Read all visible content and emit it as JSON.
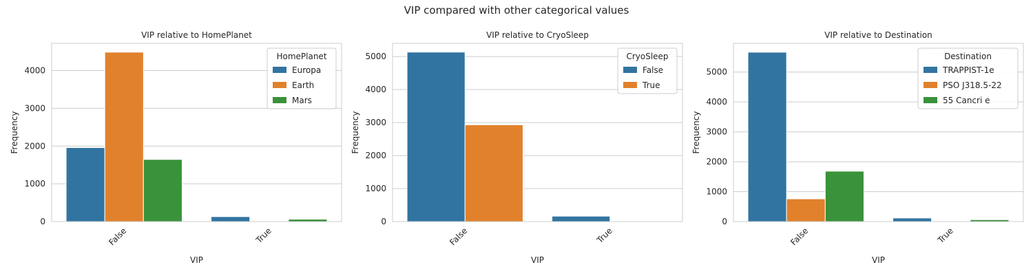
{
  "suptitle": "VIP compared with other categorical values",
  "colors": [
    "#3274a1",
    "#e1812c",
    "#3a923a"
  ],
  "chart_data": [
    {
      "type": "bar",
      "title": "VIP relative to HomePlanet",
      "xlabel": "VIP",
      "ylabel": "Frequency",
      "categories": [
        "False",
        "True"
      ],
      "legend_title": "HomePlanet",
      "legend_position": "top-right",
      "grid": true,
      "ylim": [
        0,
        4720
      ],
      "yticks": [
        0,
        1000,
        2000,
        3000,
        4000
      ],
      "series": [
        {
          "name": "Europa",
          "values": [
            1960,
            131
          ]
        },
        {
          "name": "Earth",
          "values": [
            4487,
            0
          ]
        },
        {
          "name": "Mars",
          "values": [
            1646,
            63
          ]
        }
      ]
    },
    {
      "type": "bar",
      "title": "VIP relative to CryoSleep",
      "xlabel": "VIP",
      "ylabel": "Frequency",
      "categories": [
        "False",
        "True"
      ],
      "legend_title": "CryoSleep",
      "legend_position": "top-right",
      "grid": true,
      "ylim": [
        0,
        5400
      ],
      "yticks": [
        0,
        1000,
        2000,
        3000,
        4000,
        5000
      ],
      "series": [
        {
          "name": "False",
          "values": [
            5135,
            164
          ]
        },
        {
          "name": "True",
          "values": [
            2932,
            0
          ]
        }
      ]
    },
    {
      "type": "bar",
      "title": "VIP relative to Destination",
      "xlabel": "VIP",
      "ylabel": "Frequency",
      "categories": [
        "False",
        "True"
      ],
      "legend_title": "Destination",
      "legend_position": "top-right",
      "grid": true,
      "ylim": [
        0,
        5960
      ],
      "yticks": [
        0,
        1000,
        2000,
        3000,
        4000,
        5000
      ],
      "series": [
        {
          "name": "TRAPPIST-1e",
          "values": [
            5664,
            120
          ]
        },
        {
          "name": "PSO J318.5-22",
          "values": [
            760,
            0
          ]
        },
        {
          "name": "55 Cancri e",
          "values": [
            1685,
            64
          ]
        }
      ]
    }
  ]
}
